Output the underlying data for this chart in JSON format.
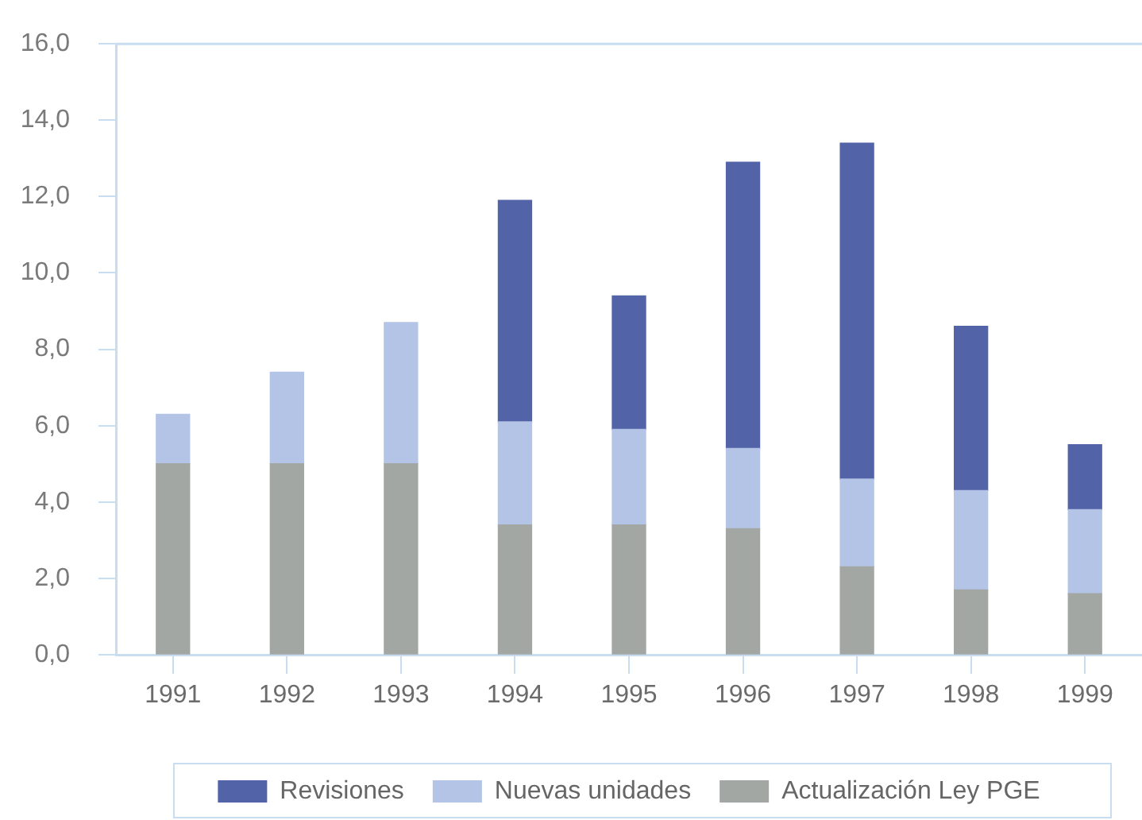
{
  "chart_data": {
    "type": "bar",
    "categories": [
      "1991",
      "1992",
      "1993",
      "1994",
      "1995",
      "1996",
      "1997",
      "1998",
      "1999"
    ],
    "series": [
      {
        "name": "Actualización Ley PGE",
        "color": "#a3a7a4",
        "values": [
          5.0,
          5.0,
          5.0,
          3.4,
          3.4,
          3.3,
          2.3,
          1.7,
          1.6
        ]
      },
      {
        "name": "Nuevas unidades",
        "color": "#b3c4e6",
        "values": [
          1.3,
          2.4,
          3.7,
          2.7,
          2.5,
          2.1,
          2.3,
          2.6,
          2.2
        ]
      },
      {
        "name": "Revisiones",
        "color": "#5263a8",
        "values": [
          null,
          null,
          null,
          5.8,
          3.5,
          7.5,
          8.8,
          4.3,
          1.7
        ]
      }
    ],
    "stacked": true,
    "ylim": [
      0,
      16
    ],
    "yticks": [
      {
        "value": 0,
        "label": "0,0"
      },
      {
        "value": 2,
        "label": "2,0"
      },
      {
        "value": 4,
        "label": "4,0"
      },
      {
        "value": 6,
        "label": "6,0"
      },
      {
        "value": 8,
        "label": "8,0"
      },
      {
        "value": 10,
        "label": "10,0"
      },
      {
        "value": 12,
        "label": "12,0"
      },
      {
        "value": 14,
        "label": "14,0"
      },
      {
        "value": 16,
        "label": "16,0"
      }
    ],
    "legend": "bottom"
  }
}
